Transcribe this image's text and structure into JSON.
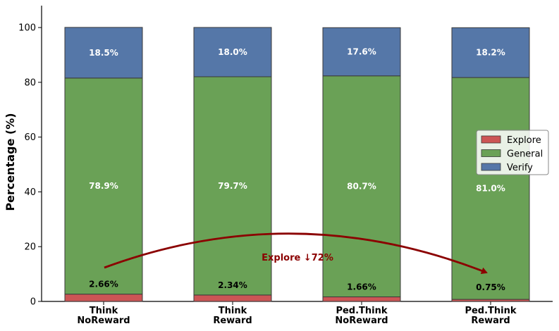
{
  "chart_data": {
    "type": "bar",
    "stacked": true,
    "categories": [
      [
        "Think",
        "NoReward"
      ],
      [
        "Think",
        "Reward"
      ],
      [
        "Ped.Think",
        "NoReward"
      ],
      [
        "Ped.Think",
        "Reward"
      ]
    ],
    "series": [
      {
        "name": "Explore",
        "color": "#cc5555",
        "values": [
          2.66,
          2.34,
          1.66,
          0.75
        ],
        "labels": [
          "2.66%",
          "2.34%",
          "1.66%",
          "0.75%"
        ]
      },
      {
        "name": "General",
        "color": "#6aa156",
        "values": [
          78.9,
          79.7,
          80.7,
          81.0
        ],
        "labels": [
          "78.9%",
          "79.7%",
          "80.7%",
          "81.0%"
        ]
      },
      {
        "name": "Verify",
        "color": "#5577a8",
        "values": [
          18.5,
          18.0,
          17.6,
          18.2
        ],
        "labels": [
          "18.5%",
          "18.0%",
          "17.6%",
          "18.2%"
        ]
      }
    ],
    "ylabel": "Percentage (%)",
    "xlabel": "",
    "ylim": [
      0,
      108
    ],
    "yticks": [
      0,
      20,
      40,
      60,
      80,
      100
    ],
    "legend_position": "center-right",
    "annotation": {
      "text": "Explore ↓72%",
      "color": "#8b0000"
    }
  }
}
